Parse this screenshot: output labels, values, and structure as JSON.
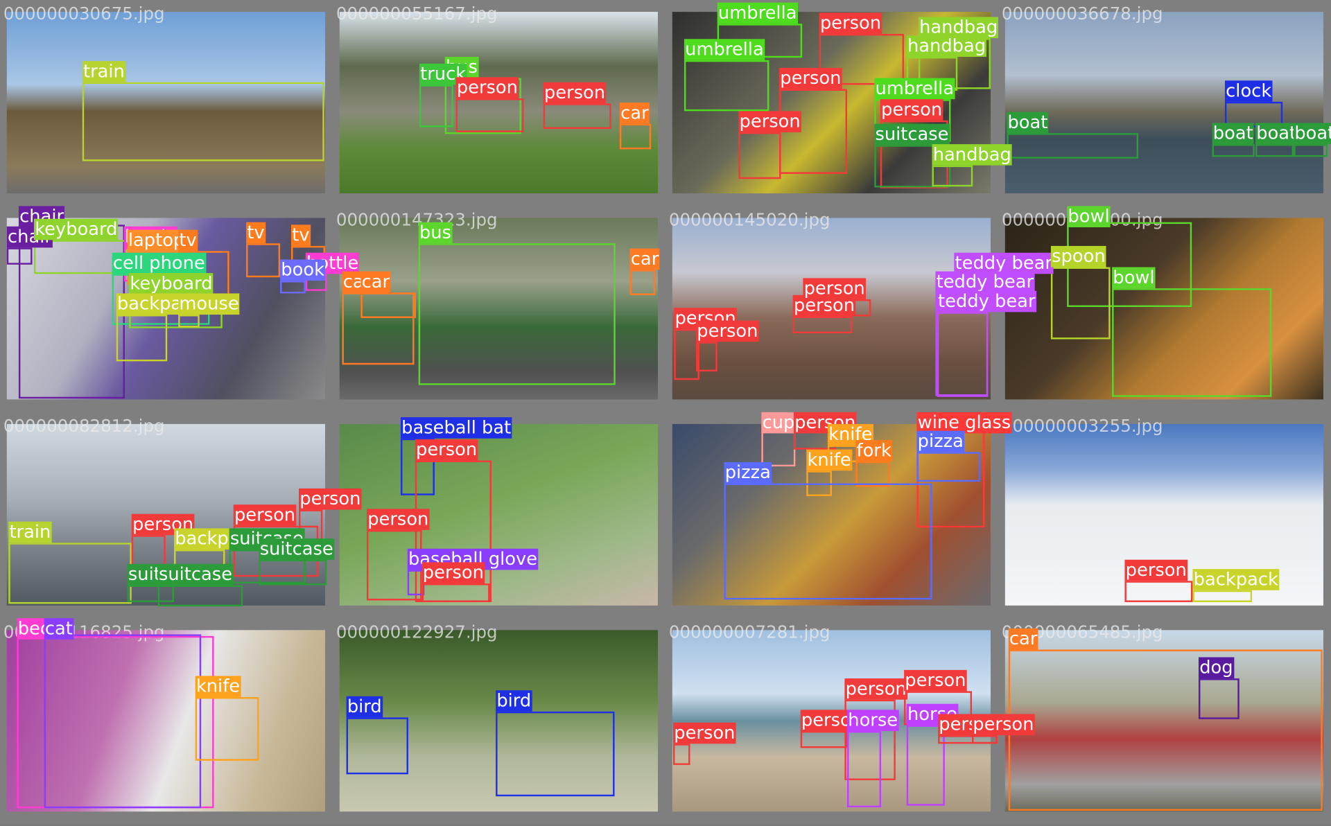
{
  "palette": {
    "train": "#b6d430",
    "bus": "#5cd62c",
    "truck": "#3cc63a",
    "car": "#ff7a22",
    "person": "#f23a3a",
    "umbrella": "#4fdc1e",
    "handbag": "#8fd42a",
    "clock": "#1f2fe6",
    "boat": "#2c9c3a",
    "chair": "#6a1fa0",
    "keyboard": "#8fd42c",
    "bottle": "#ff3bd2",
    "laptop": "#ff8d2a",
    "tv": "#ff7c1e",
    "cell phone": "#2bd67c",
    "backpack": "#c8d42b",
    "mouse": "#c8d42b",
    "book": "#6b6bff",
    "teddy bear": "#c04dff",
    "spoon": "#b4d42a",
    "bowl": "#5cd62c",
    "baseball bat": "#1f2fe6",
    "baseball glove": "#8a3cff",
    "cup": "#ff9a9a",
    "knife": "#ffa31e",
    "fork": "#ff7c1e",
    "pizza": "#5b6bff",
    "wine glass": "#ff3838",
    "suitcase": "#2c9c3a",
    "bird": "#1f2fe6",
    "horse": "#c040ff",
    "dog": "#5a1aa0",
    "bed": "#ff3bd2",
    "cat": "#8a3cff"
  },
  "tiles": [
    {
      "filename": "000000030675.jpg",
      "detections": [
        {
          "label": "train"
        }
      ]
    },
    {
      "filename": "000000055167.jpg",
      "detections": [
        {
          "label": "bus"
        },
        {
          "label": "truck"
        },
        {
          "label": "person"
        },
        {
          "label": "person"
        },
        {
          "label": "car"
        }
      ]
    },
    {
      "filename": null,
      "detections": [
        {
          "label": "umbrella"
        },
        {
          "label": "umbrella"
        },
        {
          "label": "person"
        },
        {
          "label": "handbag"
        },
        {
          "label": "handbag"
        },
        {
          "label": "person"
        },
        {
          "label": "person"
        },
        {
          "label": "umbrella"
        },
        {
          "label": "person"
        },
        {
          "label": "suitcase"
        },
        {
          "label": "handbag"
        }
      ]
    },
    {
      "filename": "000000036678.jpg",
      "detections": [
        {
          "label": "clock"
        },
        {
          "label": "boat"
        },
        {
          "label": "boat"
        },
        {
          "label": "boat"
        },
        {
          "label": "boat"
        }
      ]
    },
    {
      "filename": null,
      "detections": [
        {
          "label": "chair"
        },
        {
          "label": "chair"
        },
        {
          "label": "keyboard"
        },
        {
          "label": "bottle"
        },
        {
          "label": "laptop"
        },
        {
          "label": "tv"
        },
        {
          "label": "tv"
        },
        {
          "label": "tv"
        },
        {
          "label": "cell phone"
        },
        {
          "label": "keyboard"
        },
        {
          "label": "backpack"
        },
        {
          "label": "mouse"
        },
        {
          "label": "bottle"
        },
        {
          "label": "book"
        }
      ]
    },
    {
      "filename": "000000147323.jpg",
      "detections": [
        {
          "label": "bus"
        },
        {
          "label": "car"
        },
        {
          "label": "car"
        },
        {
          "label": "car"
        }
      ]
    },
    {
      "filename": "000000145020.jpg",
      "detections": [
        {
          "label": "person"
        },
        {
          "label": "person"
        },
        {
          "label": "person"
        },
        {
          "label": "person"
        },
        {
          "label": "teddy bear"
        },
        {
          "label": "teddy bear"
        },
        {
          "label": "teddy bear"
        }
      ]
    },
    {
      "filename": "000000005600.jpg",
      "detections": [
        {
          "label": "bowl"
        },
        {
          "label": "spoon"
        },
        {
          "label": "bowl"
        }
      ]
    },
    {
      "filename": "000000082812.jpg",
      "detections": [
        {
          "label": "train"
        },
        {
          "label": "person"
        },
        {
          "label": "person"
        },
        {
          "label": "person"
        },
        {
          "label": "backpack"
        },
        {
          "label": "suitcase"
        },
        {
          "label": "suitcase"
        },
        {
          "label": "suitcase"
        },
        {
          "label": "suitcase"
        }
      ]
    },
    {
      "filename": null,
      "detections": [
        {
          "label": "baseball bat"
        },
        {
          "label": "person"
        },
        {
          "label": "person"
        },
        {
          "label": "baseball glove"
        },
        {
          "label": "person"
        }
      ]
    },
    {
      "filename": null,
      "detections": [
        {
          "label": "cup"
        },
        {
          "label": "person"
        },
        {
          "label": "knife"
        },
        {
          "label": "fork"
        },
        {
          "label": "knife"
        },
        {
          "label": "wine glass"
        },
        {
          "label": "pizza"
        },
        {
          "label": "pizza"
        }
      ]
    },
    {
      "filename": "000000003255.jpg",
      "detections": [
        {
          "label": "person"
        },
        {
          "label": "backpack"
        }
      ]
    },
    {
      "filename": "000000116825.jpg",
      "detections": [
        {
          "label": "bed"
        },
        {
          "label": "cat"
        },
        {
          "label": "knife"
        }
      ]
    },
    {
      "filename": "000000122927.jpg",
      "detections": [
        {
          "label": "bird"
        },
        {
          "label": "bird"
        }
      ]
    },
    {
      "filename": "000000007281.jpg",
      "detections": [
        {
          "label": "person"
        },
        {
          "label": "person"
        },
        {
          "label": "person"
        },
        {
          "label": "person"
        },
        {
          "label": "horse"
        },
        {
          "label": "horse"
        },
        {
          "label": "person"
        },
        {
          "label": "person"
        }
      ]
    },
    {
      "filename": "000000065485.jpg",
      "detections": [
        {
          "label": "car"
        },
        {
          "label": "dog"
        }
      ]
    }
  ]
}
